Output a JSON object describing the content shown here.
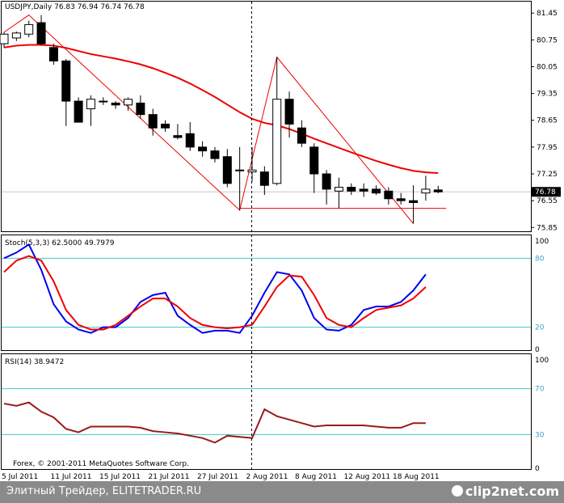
{
  "chart_data": [
    {
      "type": "candlestick",
      "symbol": "USDJPY",
      "title": "USDJPY,Daily  76.83 76.94 76.74 76.78",
      "current_price": "76.78",
      "price_ticks": [
        "81.45",
        "80.75",
        "80.05",
        "79.35",
        "78.65",
        "77.95",
        "77.25",
        "76.55",
        "75.85"
      ],
      "ylim": [
        75.75,
        81.75
      ],
      "x_ticks": [
        "5 Jul 2011",
        "11 Jul 2011",
        "15 Jul 2011",
        "21 Jul 2011",
        "27 Jul 2011",
        "2 Aug 2011",
        "8 Aug 2011",
        "12 Aug 2011",
        "18 Aug 2011"
      ],
      "candles": [
        {
          "date": "2011-07-04",
          "o": 80.65,
          "h": 80.95,
          "l": 80.55,
          "c": 80.9
        },
        {
          "date": "2011-07-05",
          "o": 80.8,
          "h": 80.97,
          "l": 80.72,
          "c": 80.93
        },
        {
          "date": "2011-07-06",
          "o": 80.9,
          "h": 81.25,
          "l": 80.82,
          "c": 81.15
        },
        {
          "date": "2011-07-07",
          "o": 81.2,
          "h": 81.4,
          "l": 80.6,
          "c": 80.65
        },
        {
          "date": "2011-07-08",
          "o": 80.55,
          "h": 80.65,
          "l": 80.1,
          "c": 80.2
        },
        {
          "date": "2011-07-11",
          "o": 80.2,
          "h": 80.25,
          "l": 78.5,
          "c": 79.15
        },
        {
          "date": "2011-07-12",
          "o": 79.15,
          "h": 79.25,
          "l": 78.6,
          "c": 78.6
        },
        {
          "date": "2011-07-13",
          "o": 78.95,
          "h": 79.3,
          "l": 78.5,
          "c": 79.2
        },
        {
          "date": "2011-07-14",
          "o": 79.15,
          "h": 79.25,
          "l": 79.05,
          "c": 79.15
        },
        {
          "date": "2011-07-15",
          "o": 79.1,
          "h": 79.15,
          "l": 78.95,
          "c": 79.05
        },
        {
          "date": "2011-07-18",
          "o": 79.05,
          "h": 79.25,
          "l": 78.9,
          "c": 79.2
        },
        {
          "date": "2011-07-19",
          "o": 79.1,
          "h": 79.3,
          "l": 78.7,
          "c": 78.8
        },
        {
          "date": "2011-07-20",
          "o": 78.8,
          "h": 78.95,
          "l": 78.25,
          "c": 78.45
        },
        {
          "date": "2011-07-21",
          "o": 78.55,
          "h": 78.65,
          "l": 78.35,
          "c": 78.45
        },
        {
          "date": "2011-07-22",
          "o": 78.25,
          "h": 78.55,
          "l": 78.15,
          "c": 78.2
        },
        {
          "date": "2011-07-25",
          "o": 78.3,
          "h": 78.6,
          "l": 77.85,
          "c": 77.95
        },
        {
          "date": "2011-07-26",
          "o": 77.95,
          "h": 78.1,
          "l": 77.7,
          "c": 77.85
        },
        {
          "date": "2011-07-27",
          "o": 77.85,
          "h": 77.95,
          "l": 77.55,
          "c": 77.65
        },
        {
          "date": "2011-07-28",
          "o": 77.7,
          "h": 77.9,
          "l": 76.9,
          "c": 77.0
        },
        {
          "date": "2011-07-29",
          "o": 77.35,
          "h": 77.95,
          "l": 76.3,
          "c": 77.35
        },
        {
          "date": "2011-08-01",
          "o": 77.3,
          "h": 77.95,
          "l": 77.05,
          "c": 77.35
        },
        {
          "date": "2011-08-02",
          "o": 77.3,
          "h": 77.45,
          "l": 76.7,
          "c": 76.95
        },
        {
          "date": "2011-08-03",
          "o": 77.0,
          "h": 80.3,
          "l": 76.95,
          "c": 79.2
        },
        {
          "date": "2011-08-04",
          "o": 79.2,
          "h": 79.4,
          "l": 78.2,
          "c": 78.55
        },
        {
          "date": "2011-08-05",
          "o": 78.45,
          "h": 78.65,
          "l": 77.95,
          "c": 78.05
        },
        {
          "date": "2011-08-08",
          "o": 77.95,
          "h": 78.05,
          "l": 76.75,
          "c": 77.25
        },
        {
          "date": "2011-08-09",
          "o": 77.25,
          "h": 77.35,
          "l": 76.45,
          "c": 76.85
        },
        {
          "date": "2011-08-10",
          "o": 76.8,
          "h": 77.15,
          "l": 76.35,
          "c": 76.9
        },
        {
          "date": "2011-08-11",
          "o": 76.9,
          "h": 77.0,
          "l": 76.7,
          "c": 76.8
        },
        {
          "date": "2011-08-12",
          "o": 76.85,
          "h": 77.0,
          "l": 76.65,
          "c": 76.8
        },
        {
          "date": "2011-08-15",
          "o": 76.85,
          "h": 76.95,
          "l": 76.7,
          "c": 76.75
        },
        {
          "date": "2011-08-16",
          "o": 76.8,
          "h": 76.9,
          "l": 76.45,
          "c": 76.6
        },
        {
          "date": "2011-08-17",
          "o": 76.6,
          "h": 76.75,
          "l": 76.45,
          "c": 76.55
        },
        {
          "date": "2011-08-18",
          "o": 76.55,
          "h": 76.95,
          "l": 75.95,
          "c": 76.5
        },
        {
          "date": "2011-08-19",
          "o": 76.75,
          "h": 77.2,
          "l": 76.55,
          "c": 76.85
        },
        {
          "date": "2011-08-22",
          "o": 76.83,
          "h": 76.94,
          "l": 76.74,
          "c": 76.78
        }
      ],
      "moving_average": [
        80.55,
        80.6,
        80.62,
        80.62,
        80.6,
        80.54,
        80.46,
        80.38,
        80.32,
        80.26,
        80.19,
        80.11,
        80.01,
        79.89,
        79.76,
        79.61,
        79.44,
        79.26,
        79.06,
        78.86,
        78.69,
        78.58,
        78.52,
        78.42,
        78.3,
        78.17,
        78.05,
        77.93,
        77.81,
        77.7,
        77.59,
        77.49,
        77.4,
        77.33,
        77.29,
        77.27
      ],
      "zigzag": [
        {
          "date": "2011-07-04",
          "price": 80.95
        },
        {
          "date": "2011-07-06",
          "price": 81.4
        },
        {
          "date": "2011-07-29",
          "price": 76.3
        },
        {
          "date": "2011-08-03",
          "price": 80.3
        },
        {
          "date": "2011-08-18",
          "price": 75.95
        }
      ],
      "support_line": {
        "from": "2011-07-29",
        "to": "2011-08-22",
        "price": 76.35
      },
      "colors": {
        "bull_fill": "#ffffff",
        "bear_fill": "#000000",
        "ma": "#ee0000",
        "zigzag": "#ee0000",
        "grid": "#c8c8c8"
      }
    },
    {
      "type": "line",
      "title": "Stoch(5,3,3) 62.5000 49.7979",
      "ylim": [
        0,
        100
      ],
      "levels": [
        80,
        20
      ],
      "level_labels": [
        "80",
        "20"
      ],
      "axis_labels": [
        "100",
        "0"
      ],
      "series": [
        {
          "color": "#0000ee",
          "values": [
            80,
            85,
            92,
            70,
            40,
            25,
            18,
            15,
            20,
            20,
            28,
            42,
            48,
            50,
            30,
            22,
            15,
            17,
            17,
            15,
            30,
            50,
            68,
            66,
            52,
            28,
            18,
            17,
            22,
            35,
            38,
            38,
            42,
            52,
            66
          ]
        },
        {
          "color": "#ee0000",
          "values": [
            68,
            78,
            82,
            78,
            60,
            35,
            22,
            18,
            18,
            22,
            30,
            38,
            45,
            45,
            38,
            28,
            22,
            20,
            19,
            20,
            22,
            38,
            55,
            65,
            64,
            48,
            28,
            22,
            20,
            28,
            35,
            37,
            39,
            45,
            55
          ]
        }
      ]
    },
    {
      "type": "line",
      "title": "RSI(14) 38.9472",
      "ylim": [
        0,
        100
      ],
      "levels": [
        70,
        30
      ],
      "level_labels": [
        "70",
        "30"
      ],
      "axis_labels": [
        "100",
        "0"
      ],
      "series": [
        {
          "color": "#9a1a1a",
          "values": [
            57,
            55,
            58,
            50,
            45,
            35,
            32,
            37,
            37,
            37,
            37,
            36,
            33,
            32,
            31,
            29,
            27,
            23,
            29,
            28,
            27,
            52,
            46,
            43,
            40,
            37,
            38,
            38,
            38,
            38,
            37,
            36,
            36,
            40,
            40
          ]
        }
      ]
    }
  ],
  "copyright": "Forex, © 2001-2011 MetaQuotes Software Corp.",
  "footer": {
    "left_text": "Элитный Трейдер, ELITETRADER.RU",
    "watermark": "clip2net.com"
  }
}
